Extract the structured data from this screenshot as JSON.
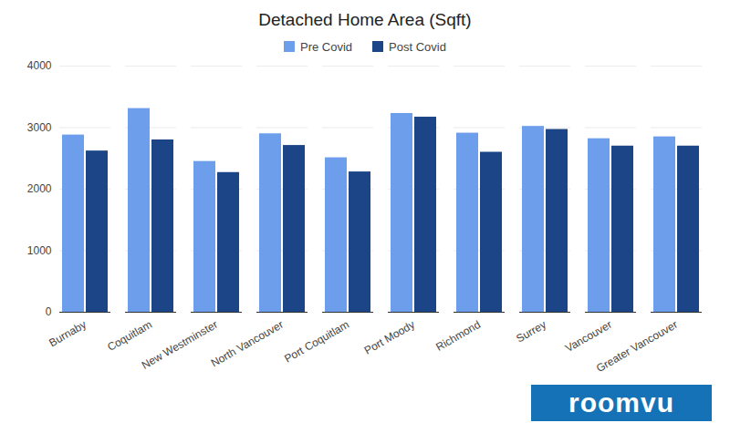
{
  "chart_data": {
    "type": "bar",
    "title": "Detached Home Area (Sqft)",
    "categories": [
      "Burnaby",
      "Coquitlam",
      "New Westminster",
      "North Vancouver",
      "Port Coquitlam",
      "Port Moody",
      "Richmond",
      "Surrey",
      "Vancouver",
      "Greater Vancouver"
    ],
    "series": [
      {
        "name": "Pre Covid",
        "color": "#6d9eeb",
        "values": [
          2880,
          3310,
          2450,
          2900,
          2510,
          3230,
          2910,
          3020,
          2820,
          2850
        ]
      },
      {
        "name": "Post Covid",
        "color": "#1c4587",
        "values": [
          2620,
          2800,
          2270,
          2710,
          2280,
          3170,
          2600,
          2970,
          2700,
          2700
        ]
      }
    ],
    "ylim": [
      0,
      4000
    ],
    "yticks": [
      0,
      1000,
      2000,
      3000,
      4000
    ],
    "grid": true,
    "legend": "top",
    "annotations": [
      "roomvu"
    ]
  }
}
